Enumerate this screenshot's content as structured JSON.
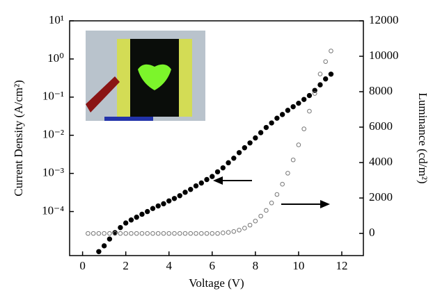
{
  "chart_data": {
    "type": "scatter",
    "xlabel": "Voltage (V)",
    "ylabel": "Current Density (A/cm²)",
    "y2label": "Luminance (cd/m²)",
    "xlim": [
      -0.6,
      13
    ],
    "xticks": [
      0,
      2,
      4,
      6,
      8,
      10,
      12
    ],
    "ylim": [
      7e-06,
      10
    ],
    "ylog": true,
    "yticks": [
      {
        "value": 0.0001,
        "label": "10⁻⁴"
      },
      {
        "value": 0.001,
        "label": "10⁻³"
      },
      {
        "value": 0.01,
        "label": "10⁻²"
      },
      {
        "value": 0.1,
        "label": "10⁻¹"
      },
      {
        "value": 1,
        "label": "10⁰"
      },
      {
        "value": 10,
        "label": "10¹"
      }
    ],
    "y2lim": [
      -1250,
      12000
    ],
    "y2ticks": [
      0,
      2000,
      4000,
      6000,
      8000,
      10000,
      12000
    ],
    "series": [
      {
        "marker": "circle-filled",
        "color": "#000000",
        "axis": "y",
        "x": [
          0.75,
          1,
          1.25,
          1.5,
          1.75,
          2,
          2.25,
          2.5,
          2.75,
          3,
          3.25,
          3.5,
          3.75,
          4,
          4.25,
          4.5,
          4.75,
          5,
          5.25,
          5.5,
          5.75,
          6,
          6.25,
          6.5,
          6.75,
          7,
          7.25,
          7.5,
          7.75,
          8,
          8.25,
          8.5,
          8.75,
          9,
          9.25,
          9.5,
          9.75,
          10,
          10.25,
          10.5,
          10.75,
          11,
          11.25,
          11.5
        ],
        "values": [
          8.9e-06,
          1.26e-05,
          1.9e-05,
          2.8e-05,
          3.8e-05,
          5e-05,
          6e-05,
          7.1e-05,
          8.5e-05,
          0.0001,
          0.00012,
          0.00014,
          0.00016,
          0.00019,
          0.00022,
          0.00026,
          0.00032,
          0.00038,
          0.00047,
          0.00056,
          0.00069,
          0.00083,
          0.0011,
          0.0014,
          0.0019,
          0.0025,
          0.0035,
          0.0047,
          0.0063,
          0.0085,
          0.0117,
          0.016,
          0.021,
          0.028,
          0.035,
          0.045,
          0.056,
          0.069,
          0.087,
          0.11,
          0.15,
          0.21,
          0.3,
          0.4
        ]
      },
      {
        "marker": "circle-open",
        "color": "#777777",
        "axis": "y2",
        "x": [
          0.25,
          0.5,
          0.75,
          1,
          1.25,
          1.5,
          1.75,
          2,
          2.25,
          2.5,
          2.75,
          3,
          3.25,
          3.5,
          3.75,
          4,
          4.25,
          4.5,
          4.75,
          5,
          5.25,
          5.5,
          5.75,
          6,
          6.25,
          6.5,
          6.75,
          7,
          7.25,
          7.5,
          7.75,
          8,
          8.25,
          8.5,
          8.75,
          9,
          9.25,
          9.5,
          9.75,
          10,
          10.25,
          10.5,
          10.75,
          11,
          11.25,
          11.5
        ],
        "values": [
          0,
          0,
          0,
          0,
          0,
          0,
          0,
          0,
          0,
          0,
          0,
          0,
          0,
          0,
          0,
          0,
          0,
          0,
          0,
          0,
          0,
          0,
          0,
          0,
          0,
          30,
          60,
          110,
          190,
          300,
          470,
          700,
          980,
          1300,
          1720,
          2200,
          2780,
          3400,
          4150,
          5000,
          5900,
          6900,
          7900,
          9000,
          9700,
          10300
        ]
      }
    ]
  }
}
